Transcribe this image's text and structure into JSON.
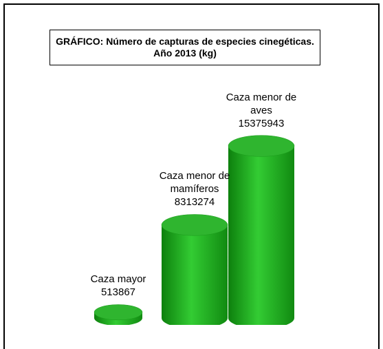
{
  "chart_data": {
    "type": "bar",
    "title": "GRÁFICO: Número de capturas de especies cinegéticas. Año 2013 (kg)",
    "categories": [
      "Caza mayor",
      "Caza menor de mamíferos",
      "Caza menor de aves"
    ],
    "values": [
      513867,
      8313274,
      15375943
    ],
    "color": "#22aa22"
  }
}
